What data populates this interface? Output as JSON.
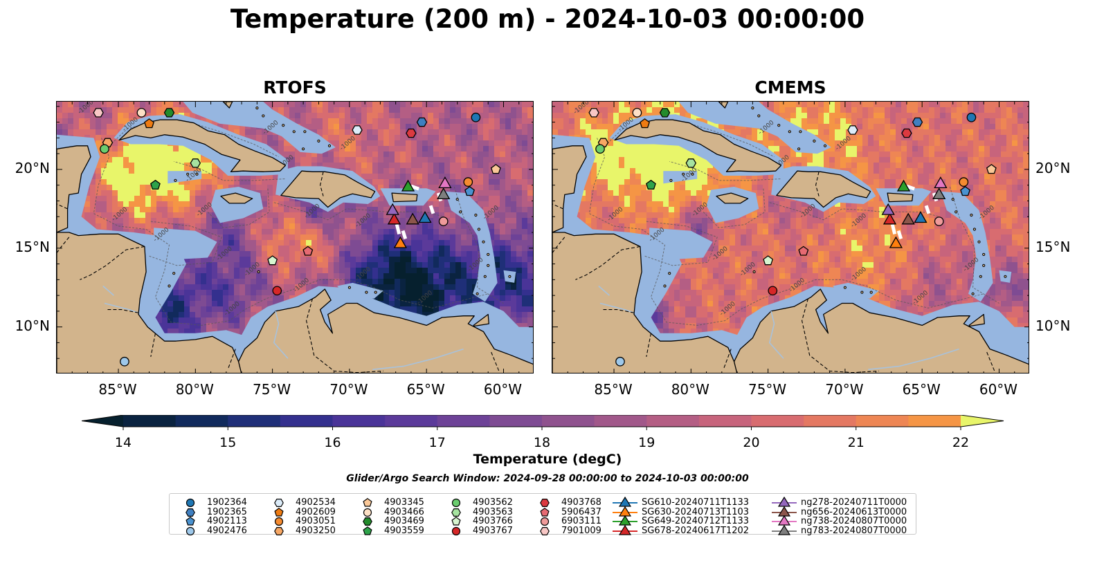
{
  "title": "Temperature (200 m) - 2024-10-03 00:00:00",
  "panels": [
    {
      "title": "RTOFS",
      "palette": "rtofs"
    },
    {
      "title": "CMEMS",
      "palette": "cmems"
    }
  ],
  "map_extent": {
    "lon": [
      -89,
      -58
    ],
    "lat": [
      7,
      24.3
    ]
  },
  "lon_ticks": [
    "85°W",
    "80°W",
    "75°W",
    "70°W",
    "65°W",
    "60°W"
  ],
  "lon_values": [
    -85,
    -80,
    -75,
    -70,
    -65,
    -60
  ],
  "lat_ticks": [
    "10°N",
    "15°N",
    "20°N"
  ],
  "lat_values": [
    10,
    15,
    20
  ],
  "contour_label": "-1000",
  "colorbar": {
    "label": "Temperature (degC)",
    "min": 14,
    "max": 22,
    "step": 0.5,
    "ticks": [
      "14",
      "15",
      "16",
      "17",
      "18",
      "19",
      "20",
      "21",
      "22"
    ],
    "colors": [
      "#0a2340",
      "#112a5c",
      "#1f2f78",
      "#34308e",
      "#4a3498",
      "#5b3a9a",
      "#6d4297",
      "#7e4b93",
      "#8f528e",
      "#a1588a",
      "#b45e84",
      "#c7647c",
      "#d86c70",
      "#e47862",
      "#ee8654",
      "#f59545",
      "#f9a93d",
      "#fbc13f",
      "#f6dc4c"
    ],
    "over_color": "#e8f56a",
    "under_color": "#06202e"
  },
  "search_window": "Glider/Argo Search Window: 2024-09-28 00:00:00 to 2024-10-03 00:00:00",
  "floats": [
    {
      "id": "1902364",
      "marker": "circle",
      "color": "#1f77b4",
      "lon": -61.8,
      "lat": 23.3
    },
    {
      "id": "1902365",
      "marker": "hexagon",
      "color": "#3f7fc0",
      "lon": -65.3,
      "lat": 23.0
    },
    {
      "id": "4902113",
      "marker": "pentagon",
      "color": "#4a92d0",
      "lon": -62.2,
      "lat": 18.6
    },
    {
      "id": "4902476",
      "marker": "circle",
      "color": "#9ec8ea",
      "lon": -84.6,
      "lat": 7.8
    },
    {
      "id": "4902534",
      "marker": "hexagon",
      "color": "#dcecf9",
      "lon": -69.5,
      "lat": 22.5
    },
    {
      "id": "4902609",
      "marker": "pentagon",
      "color": "#ee7b12",
      "lon": -83.0,
      "lat": 22.9
    },
    {
      "id": "4903051",
      "marker": "circle",
      "color": "#f58b30",
      "lon": -62.3,
      "lat": 19.2
    },
    {
      "id": "4903250",
      "marker": "hexagon",
      "color": "#f7a764",
      "lon": -85.7,
      "lat": 21.7
    },
    {
      "id": "4903345",
      "marker": "pentagon",
      "color": "#fac898",
      "lon": -60.5,
      "lat": 20.0
    },
    {
      "id": "4903466",
      "marker": "circle",
      "color": "#fde0c5",
      "lon": -83.5,
      "lat": 23.6
    },
    {
      "id": "4903469",
      "marker": "hexagon",
      "color": "#238b2c",
      "lon": -81.7,
      "lat": 23.6
    },
    {
      "id": "4903559",
      "marker": "pentagon",
      "color": "#2ea34a",
      "lon": -82.6,
      "lat": 19.0
    },
    {
      "id": "4903562",
      "marker": "circle",
      "color": "#6bcd6f",
      "lon": -85.9,
      "lat": 21.3
    },
    {
      "id": "4903563",
      "marker": "hexagon",
      "color": "#a6e3a0",
      "lon": -80.0,
      "lat": 20.4
    },
    {
      "id": "4903766",
      "marker": "pentagon",
      "color": "#d6f5cf",
      "lon": -75.0,
      "lat": 14.2
    },
    {
      "id": "4903767",
      "marker": "circle",
      "color": "#d62728",
      "lon": -74.7,
      "lat": 12.3
    },
    {
      "id": "4903768",
      "marker": "hexagon",
      "color": "#dc3a40",
      "lon": -66.0,
      "lat": 22.3
    },
    {
      "id": "5906437",
      "marker": "pentagon",
      "color": "#e66a72",
      "lon": -72.7,
      "lat": 14.8
    },
    {
      "id": "6903111",
      "marker": "circle",
      "color": "#ef9a9a",
      "lon": -63.9,
      "lat": 16.7
    },
    {
      "id": "7901009",
      "marker": "hexagon",
      "color": "#f8c7c5",
      "lon": -86.3,
      "lat": 23.6
    }
  ],
  "gliders": [
    {
      "id": "SG610-20240711T1133",
      "color": "#1f77b4",
      "lon": -65.1,
      "lat": 16.9
    },
    {
      "id": "SG630-20240713T1103",
      "color": "#ff7f0e",
      "lon": -66.7,
      "lat": 15.3
    },
    {
      "id": "SG649-20240712T1133",
      "color": "#2ca02c",
      "lon": -66.2,
      "lat": 18.9
    },
    {
      "id": "SG678-20240617T1202",
      "color": "#d62728",
      "lon": -67.1,
      "lat": 16.8
    },
    {
      "id": "ng278-20240711T0000",
      "color": "#9467bd",
      "lon": -67.2,
      "lat": 17.4
    },
    {
      "id": "ng656-20240613T0000",
      "color": "#8c564b",
      "lon": -65.9,
      "lat": 16.8
    },
    {
      "id": "ng738-20240807T0000",
      "color": "#e377c2",
      "lon": -63.8,
      "lat": 19.1
    },
    {
      "id": "ng783-20240807T0000",
      "color": "#7f7f7f",
      "lon": -63.9,
      "lat": 18.4
    }
  ],
  "legend_columns": [
    [
      "1902364",
      "1902365",
      "4902113",
      "4902476"
    ],
    [
      "4902534",
      "4902609",
      "4903051",
      "4903250"
    ],
    [
      "4903345",
      "4903466",
      "4903469",
      "4903559"
    ],
    [
      "4903562",
      "4903563",
      "4903766",
      "4903767"
    ],
    [
      "4903768",
      "5906437",
      "6903111",
      "7901009"
    ],
    [
      "SG610-20240711T1133",
      "SG630-20240713T1103",
      "SG649-20240712T1133",
      "SG678-20240617T1202"
    ],
    [
      "ng278-20240711T0000",
      "ng656-20240613T0000",
      "ng738-20240807T0000",
      "ng783-20240807T0000"
    ]
  ],
  "map_colors": {
    "land": "#d2b48c",
    "shelf": "#96b6e0",
    "deep_pacific": "#05202f",
    "coast": "#000000",
    "river": "#a8c2dc"
  }
}
